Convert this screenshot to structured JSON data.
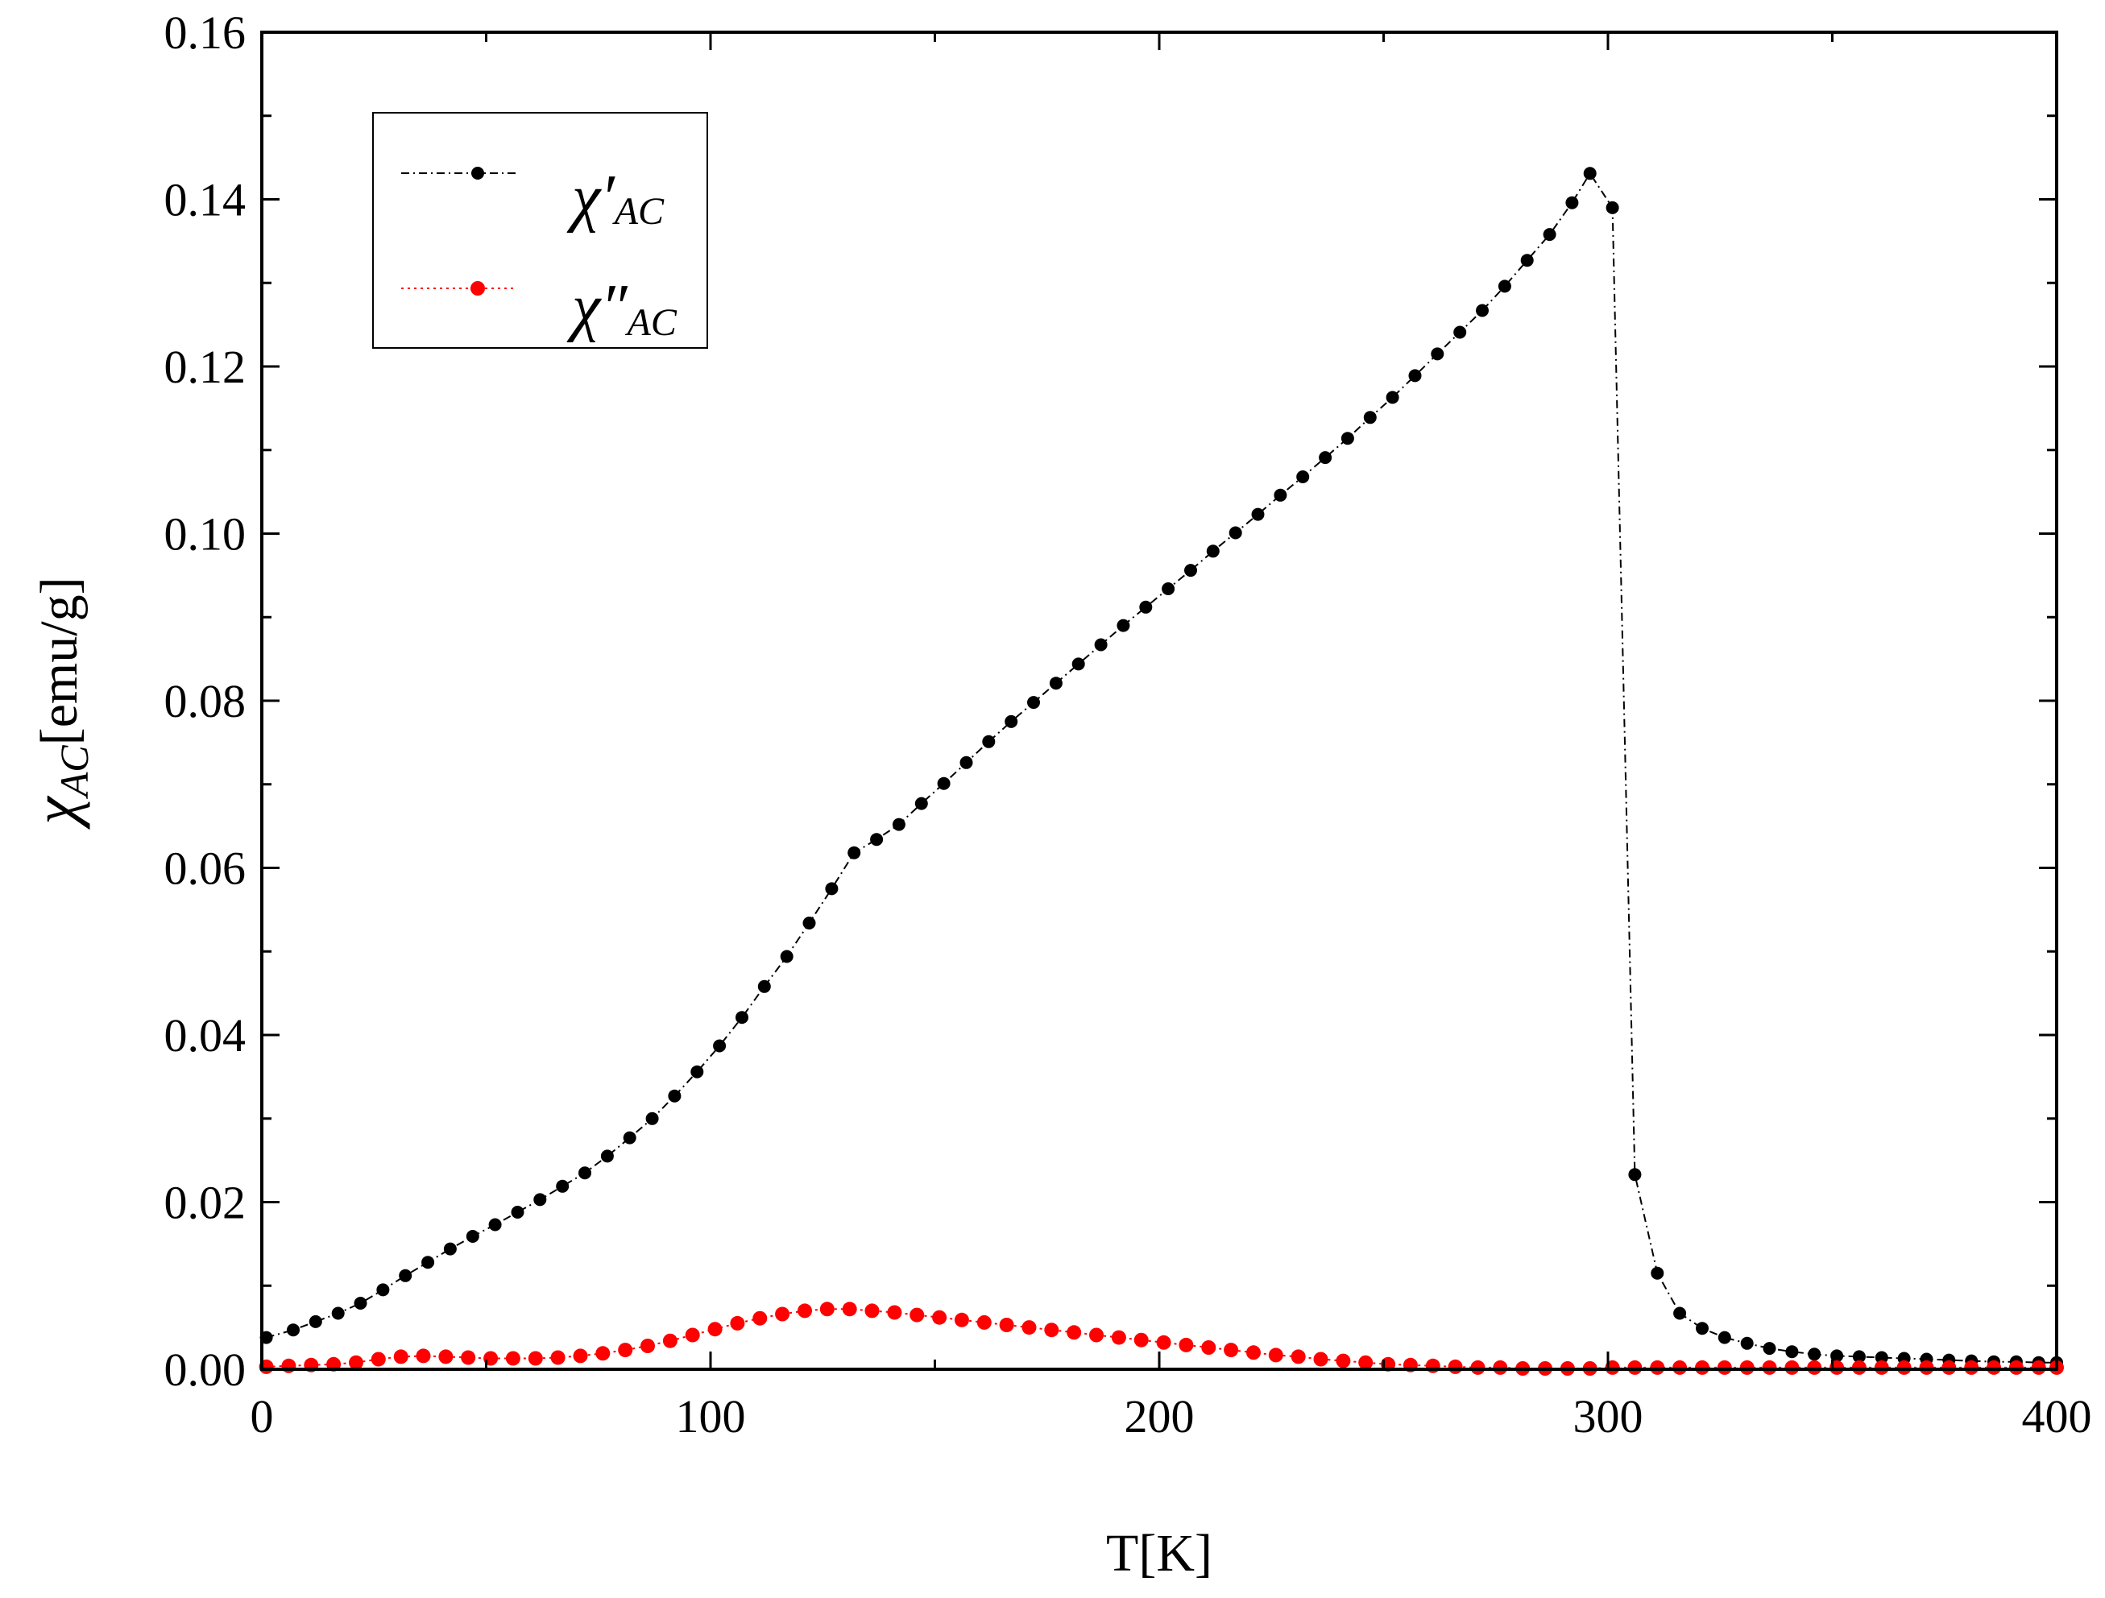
{
  "chart_data": {
    "type": "line",
    "title": "",
    "xlabel": "T[K]",
    "ylabel_symbol": "χ",
    "ylabel_sub": "AC",
    "ylabel_unit": "[emu/g]",
    "xlim": [
      0,
      400
    ],
    "ylim": [
      0,
      0.16
    ],
    "xticks": [
      0,
      100,
      200,
      300,
      400
    ],
    "xtick_labels": [
      "0",
      "100",
      "200",
      "300",
      "400"
    ],
    "yticks": [
      0,
      0.02,
      0.04,
      0.06,
      0.08,
      0.1,
      0.12,
      0.14,
      0.16
    ],
    "ytick_labels": [
      "0.00",
      "0.02",
      "0.04",
      "0.06",
      "0.08",
      "0.10",
      "0.12",
      "0.14",
      "0.16"
    ],
    "grid": false,
    "legend_position": "top-left",
    "series": [
      {
        "name": "χ'AC",
        "symbol": "χ",
        "prime": "′",
        "sub": "AC",
        "color": "#000000",
        "line_style": "dash-dot",
        "points": [
          [
            1,
            0.0038
          ],
          [
            7,
            0.0047
          ],
          [
            12,
            0.0057
          ],
          [
            17,
            0.0067
          ],
          [
            22,
            0.0079
          ],
          [
            27,
            0.0095
          ],
          [
            32,
            0.0112
          ],
          [
            37,
            0.0128
          ],
          [
            42,
            0.0144
          ],
          [
            47,
            0.0159
          ],
          [
            52,
            0.0173
          ],
          [
            57,
            0.0188
          ],
          [
            62,
            0.0203
          ],
          [
            67,
            0.0219
          ],
          [
            72,
            0.0235
          ],
          [
            77,
            0.0255
          ],
          [
            82,
            0.0277
          ],
          [
            87,
            0.03
          ],
          [
            92,
            0.0327
          ],
          [
            97,
            0.0356
          ],
          [
            102,
            0.0387
          ],
          [
            107,
            0.0421
          ],
          [
            112,
            0.0458
          ],
          [
            117,
            0.0494
          ],
          [
            122,
            0.0534
          ],
          [
            127,
            0.0575
          ],
          [
            132,
            0.0618
          ],
          [
            137,
            0.0634
          ],
          [
            142,
            0.0652
          ],
          [
            147,
            0.0677
          ],
          [
            152,
            0.0701
          ],
          [
            157,
            0.0726
          ],
          [
            162,
            0.0751
          ],
          [
            167,
            0.0775
          ],
          [
            172,
            0.0798
          ],
          [
            177,
            0.0821
          ],
          [
            182,
            0.0844
          ],
          [
            187,
            0.0867
          ],
          [
            192,
            0.089
          ],
          [
            197,
            0.0912
          ],
          [
            202,
            0.0934
          ],
          [
            207,
            0.0956
          ],
          [
            212,
            0.0979
          ],
          [
            217,
            0.1001
          ],
          [
            222,
            0.1023
          ],
          [
            227,
            0.1046
          ],
          [
            232,
            0.1068
          ],
          [
            237,
            0.1091
          ],
          [
            242,
            0.1114
          ],
          [
            247,
            0.1139
          ],
          [
            252,
            0.1163
          ],
          [
            257,
            0.1189
          ],
          [
            262,
            0.1215
          ],
          [
            267,
            0.1241
          ],
          [
            272,
            0.1267
          ],
          [
            277,
            0.1296
          ],
          [
            282,
            0.1327
          ],
          [
            287,
            0.1358
          ],
          [
            292,
            0.1396
          ],
          [
            296,
            0.1431
          ],
          [
            301,
            0.139
          ],
          [
            306,
            0.0233
          ],
          [
            311,
            0.0115
          ],
          [
            316,
            0.0067
          ],
          [
            321,
            0.0049
          ],
          [
            326,
            0.0038
          ],
          [
            331,
            0.0031
          ],
          [
            336,
            0.0025
          ],
          [
            341,
            0.0021
          ],
          [
            346,
            0.0018
          ],
          [
            351,
            0.0016
          ],
          [
            356,
            0.0015
          ],
          [
            361,
            0.0014
          ],
          [
            366,
            0.0013
          ],
          [
            371,
            0.0012
          ],
          [
            376,
            0.0011
          ],
          [
            381,
            0.001
          ],
          [
            386,
            0.0009
          ],
          [
            391,
            0.0009
          ],
          [
            396,
            0.0008
          ],
          [
            400,
            0.0008
          ]
        ]
      },
      {
        "name": "χ''AC",
        "symbol": "χ",
        "prime": "″",
        "sub": "AC",
        "color": "#ff0000",
        "line_style": "dotted",
        "points": [
          [
            1,
            0.0003
          ],
          [
            6,
            0.0004
          ],
          [
            11,
            0.0005
          ],
          [
            16,
            0.0006
          ],
          [
            21,
            0.0008
          ],
          [
            26,
            0.0012
          ],
          [
            31,
            0.0015
          ],
          [
            36,
            0.0016
          ],
          [
            41,
            0.0015
          ],
          [
            46,
            0.0014
          ],
          [
            51,
            0.0013
          ],
          [
            56,
            0.0013
          ],
          [
            61,
            0.0013
          ],
          [
            66,
            0.0014
          ],
          [
            71,
            0.0016
          ],
          [
            76,
            0.0019
          ],
          [
            81,
            0.0023
          ],
          [
            86,
            0.0028
          ],
          [
            91,
            0.0034
          ],
          [
            96,
            0.0041
          ],
          [
            101,
            0.0048
          ],
          [
            106,
            0.0055
          ],
          [
            111,
            0.0061
          ],
          [
            116,
            0.0066
          ],
          [
            121,
            0.007
          ],
          [
            126,
            0.0072
          ],
          [
            131,
            0.0072
          ],
          [
            136,
            0.007
          ],
          [
            141,
            0.0068
          ],
          [
            146,
            0.0065
          ],
          [
            151,
            0.0062
          ],
          [
            156,
            0.0059
          ],
          [
            161,
            0.0056
          ],
          [
            166,
            0.0053
          ],
          [
            171,
            0.005
          ],
          [
            176,
            0.0047
          ],
          [
            181,
            0.0044
          ],
          [
            186,
            0.0041
          ],
          [
            191,
            0.0038
          ],
          [
            196,
            0.0035
          ],
          [
            201,
            0.0032
          ],
          [
            206,
            0.0029
          ],
          [
            211,
            0.0026
          ],
          [
            216,
            0.0023
          ],
          [
            221,
            0.002
          ],
          [
            226,
            0.0017
          ],
          [
            231,
            0.0015
          ],
          [
            236,
            0.0012
          ],
          [
            241,
            0.001
          ],
          [
            246,
            0.0008
          ],
          [
            251,
            0.0006
          ],
          [
            256,
            0.0005
          ],
          [
            261,
            0.0004
          ],
          [
            266,
            0.0003
          ],
          [
            271,
            0.0002
          ],
          [
            276,
            0.0002
          ],
          [
            281,
            0.0001
          ],
          [
            286,
            0.0001
          ],
          [
            291,
            0.0001
          ],
          [
            296,
            0.0001
          ],
          [
            301,
            0.0002
          ],
          [
            306,
            0.0002
          ],
          [
            311,
            0.0002
          ],
          [
            316,
            0.0002
          ],
          [
            321,
            0.0002
          ],
          [
            326,
            0.0002
          ],
          [
            331,
            0.0002
          ],
          [
            336,
            0.0002
          ],
          [
            341,
            0.0002
          ],
          [
            346,
            0.0002
          ],
          [
            351,
            0.0002
          ],
          [
            356,
            0.0002
          ],
          [
            361,
            0.0002
          ],
          [
            366,
            0.0002
          ],
          [
            371,
            0.0002
          ],
          [
            376,
            0.0002
          ],
          [
            381,
            0.0002
          ],
          [
            386,
            0.0002
          ],
          [
            391,
            0.0002
          ],
          [
            396,
            0.0002
          ],
          [
            400,
            0.0002
          ]
        ]
      }
    ]
  }
}
